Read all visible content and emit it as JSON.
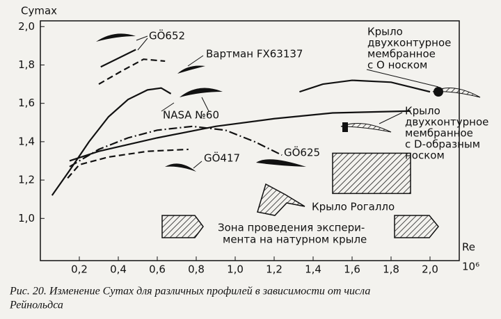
{
  "chart_data": {
    "type": "line",
    "y_label": "Cymax",
    "x_label": "Re",
    "x_unit": "10⁶",
    "caption": [
      "Рис. 20. Изменение Cymax для различных профилей в зависимости от числа",
      "Рейнольдса"
    ],
    "xlim": [
      0,
      2.15
    ],
    "ylim": [
      0.78,
      2.03
    ],
    "xticks": [
      {
        "value": 0.2,
        "label": "0,2"
      },
      {
        "value": 0.4,
        "label": "0,4"
      },
      {
        "value": 0.6,
        "label": "0,6"
      },
      {
        "value": 0.8,
        "label": "0,8"
      },
      {
        "value": 1.0,
        "label": "1,0"
      },
      {
        "value": 1.2,
        "label": "1,2"
      },
      {
        "value": 1.4,
        "label": "1,4"
      },
      {
        "value": 1.6,
        "label": "1,6"
      },
      {
        "value": 1.8,
        "label": "1,8"
      },
      {
        "value": 2.0,
        "label": "2,0"
      }
    ],
    "yticks": [
      {
        "value": 1.0,
        "label": "1,0"
      },
      {
        "value": 1.2,
        "label": "1,2"
      },
      {
        "value": 1.4,
        "label": "1,4"
      },
      {
        "value": 1.6,
        "label": "1,6"
      },
      {
        "value": 1.8,
        "label": "1,8"
      },
      {
        "value": 2.0,
        "label": "2,0"
      }
    ],
    "series": [
      {
        "label": [
          "GÖ652"
        ],
        "dash": "solid",
        "color": "#111111",
        "x": [
          0.31,
          0.49
        ],
        "values": [
          1.79,
          1.88
        ]
      },
      {
        "label": [
          "Вартман FX63137"
        ],
        "dash": "dashed",
        "color": "#111111",
        "x": [
          0.3,
          0.42,
          0.53,
          0.64
        ],
        "values": [
          1.7,
          1.77,
          1.83,
          1.82
        ]
      },
      {
        "label": [
          "NASA №60"
        ],
        "dash": "solid",
        "color": "#111111",
        "x": [
          0.06,
          0.15,
          0.25,
          0.35,
          0.45,
          0.55,
          0.62,
          0.67
        ],
        "values": [
          1.12,
          1.25,
          1.4,
          1.53,
          1.62,
          1.67,
          1.68,
          1.65
        ]
      },
      {
        "label": [
          "GÖ625"
        ],
        "dash": "dashdot",
        "color": "#111111",
        "x": [
          0.15,
          0.3,
          0.45,
          0.6,
          0.78,
          0.95,
          1.1,
          1.24
        ],
        "values": [
          1.27,
          1.36,
          1.42,
          1.46,
          1.48,
          1.46,
          1.4,
          1.33
        ]
      },
      {
        "label": [
          "GÖ417"
        ],
        "dash": "dashed",
        "color": "#111111",
        "x": [
          0.14,
          0.2,
          0.35,
          0.55,
          0.76
        ],
        "values": [
          1.21,
          1.28,
          1.32,
          1.35,
          1.36
        ]
      },
      {
        "label": [
          "Крыло",
          "двухконтурное",
          "мембранное",
          "с D-образным",
          "носком"
        ],
        "dash": "solid",
        "color": "#111111",
        "x": [
          0.15,
          0.3,
          0.6,
          0.9,
          1.2,
          1.5,
          1.9
        ],
        "values": [
          1.3,
          1.35,
          1.42,
          1.48,
          1.52,
          1.55,
          1.56
        ]
      },
      {
        "label": [
          "Крыло",
          "двухконтурное",
          "мембранное",
          "с О носком"
        ],
        "dash": "solid",
        "color": "#111111",
        "x": [
          1.33,
          1.45,
          1.6,
          1.8,
          2.0
        ],
        "values": [
          1.66,
          1.7,
          1.72,
          1.71,
          1.66
        ]
      }
    ],
    "rogallo_label": "Крыло Рогалло",
    "zone": {
      "label": [
        "Зона проведения экспери-",
        "мента на натурном крыле"
      ],
      "xlim": [
        1.5,
        1.9
      ],
      "ylim": [
        1.13,
        1.34
      ]
    }
  }
}
